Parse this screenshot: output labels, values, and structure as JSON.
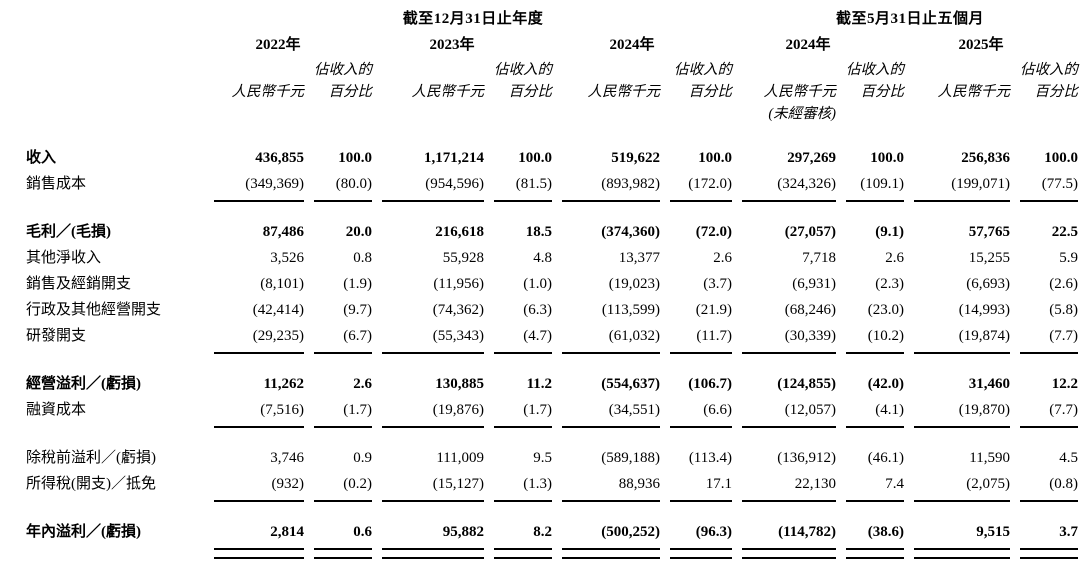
{
  "table": {
    "groups": [
      {
        "title": "截至12月31日止年度"
      },
      {
        "title": "截至5月31日止五個月"
      }
    ],
    "periods": [
      {
        "year": "2022年",
        "pct_caption": "佔收入的",
        "amount_header": "人民幣千元",
        "pct_header": "百分比",
        "note": ""
      },
      {
        "year": "2023年",
        "pct_caption": "佔收入的",
        "amount_header": "人民幣千元",
        "pct_header": "百分比",
        "note": ""
      },
      {
        "year": "2024年",
        "pct_caption": "佔收入的",
        "amount_header": "人民幣千元",
        "pct_header": "百分比",
        "note": ""
      },
      {
        "year": "2024年",
        "pct_caption": "佔收入的",
        "amount_header": "人民幣千元",
        "pct_header": "百分比",
        "note": "(未經審核)"
      },
      {
        "year": "2025年",
        "pct_caption": "佔收入的",
        "amount_header": "人民幣千元",
        "pct_header": "百分比",
        "note": ""
      }
    ],
    "sections": [
      {
        "rule": "single",
        "rows": [
          {
            "label": "收入",
            "bold": true,
            "values": [
              "436,855",
              "100.0",
              "1,171,214",
              "100.0",
              "519,622",
              "100.0",
              "297,269",
              "100.0",
              "256,836",
              "100.0"
            ]
          },
          {
            "label": "銷售成本",
            "bold": false,
            "values": [
              "(349,369)",
              "(80.0)",
              "(954,596)",
              "(81.5)",
              "(893,982)",
              "(172.0)",
              "(324,326)",
              "(109.1)",
              "(199,071)",
              "(77.5)"
            ]
          }
        ]
      },
      {
        "rule": "single",
        "rows": [
          {
            "label": "毛利／(毛損)",
            "bold": true,
            "values": [
              "87,486",
              "20.0",
              "216,618",
              "18.5",
              "(374,360)",
              "(72.0)",
              "(27,057)",
              "(9.1)",
              "57,765",
              "22.5"
            ]
          },
          {
            "label": "其他淨收入",
            "bold": false,
            "values": [
              "3,526",
              "0.8",
              "55,928",
              "4.8",
              "13,377",
              "2.6",
              "7,718",
              "2.6",
              "15,255",
              "5.9"
            ]
          },
          {
            "label": "銷售及經銷開支",
            "bold": false,
            "values": [
              "(8,101)",
              "(1.9)",
              "(11,956)",
              "(1.0)",
              "(19,023)",
              "(3.7)",
              "(6,931)",
              "(2.3)",
              "(6,693)",
              "(2.6)"
            ]
          },
          {
            "label": "行政及其他經營開支",
            "bold": false,
            "values": [
              "(42,414)",
              "(9.7)",
              "(74,362)",
              "(6.3)",
              "(113,599)",
              "(21.9)",
              "(68,246)",
              "(23.0)",
              "(14,993)",
              "(5.8)"
            ]
          },
          {
            "label": "研發開支",
            "bold": false,
            "values": [
              "(29,235)",
              "(6.7)",
              "(55,343)",
              "(4.7)",
              "(61,032)",
              "(11.7)",
              "(30,339)",
              "(10.2)",
              "(19,874)",
              "(7.7)"
            ]
          }
        ]
      },
      {
        "rule": "single",
        "rows": [
          {
            "label": "經營溢利／(虧損)",
            "bold": true,
            "values": [
              "11,262",
              "2.6",
              "130,885",
              "11.2",
              "(554,637)",
              "(106.7)",
              "(124,855)",
              "(42.0)",
              "31,460",
              "12.2"
            ]
          },
          {
            "label": "融資成本",
            "bold": false,
            "values": [
              "(7,516)",
              "(1.7)",
              "(19,876)",
              "(1.7)",
              "(34,551)",
              "(6.6)",
              "(12,057)",
              "(4.1)",
              "(19,870)",
              "(7.7)"
            ]
          }
        ]
      },
      {
        "rule": "single",
        "rows": [
          {
            "label": "除稅前溢利／(虧損)",
            "bold": false,
            "values": [
              "3,746",
              "0.9",
              "111,009",
              "9.5",
              "(589,188)",
              "(113.4)",
              "(136,912)",
              "(46.1)",
              "11,590",
              "4.5"
            ]
          },
          {
            "label": "所得稅(開支)／抵免",
            "bold": false,
            "values": [
              "(932)",
              "(0.2)",
              "(15,127)",
              "(1.3)",
              "88,936",
              "17.1",
              "22,130",
              "7.4",
              "(2,075)",
              "(0.8)"
            ]
          }
        ]
      },
      {
        "rule": "double",
        "rows": [
          {
            "label": "年內溢利／(虧損)",
            "bold": true,
            "values": [
              "2,814",
              "0.6",
              "95,882",
              "8.2",
              "(500,252)",
              "(96.3)",
              "(114,782)",
              "(38.6)",
              "9,515",
              "3.7"
            ]
          }
        ]
      }
    ]
  }
}
